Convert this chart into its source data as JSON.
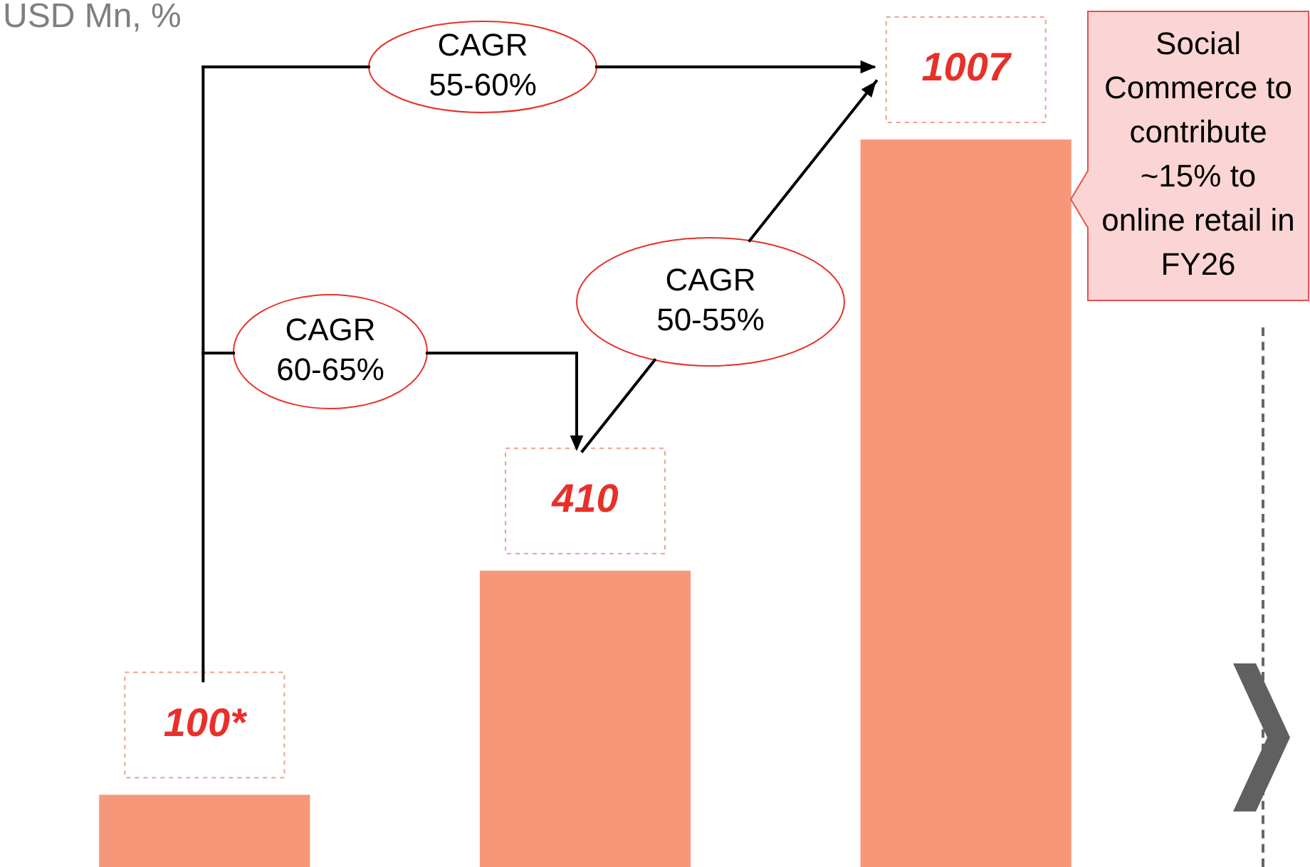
{
  "chart_data": {
    "type": "bar",
    "title": "USD Mn, %",
    "categories": [
      null,
      null,
      null
    ],
    "values": [
      100,
      410,
      1007
    ],
    "value_labels": [
      "100*",
      "410",
      "1007"
    ],
    "color": "#f7977a",
    "tick_labels": false,
    "annotations": [
      "CAGR 55-60%",
      "CAGR 60-65%",
      "CAGR 50-55%",
      "Social Commerce to contribute ~15% to online retail in FY26"
    ]
  }
}
